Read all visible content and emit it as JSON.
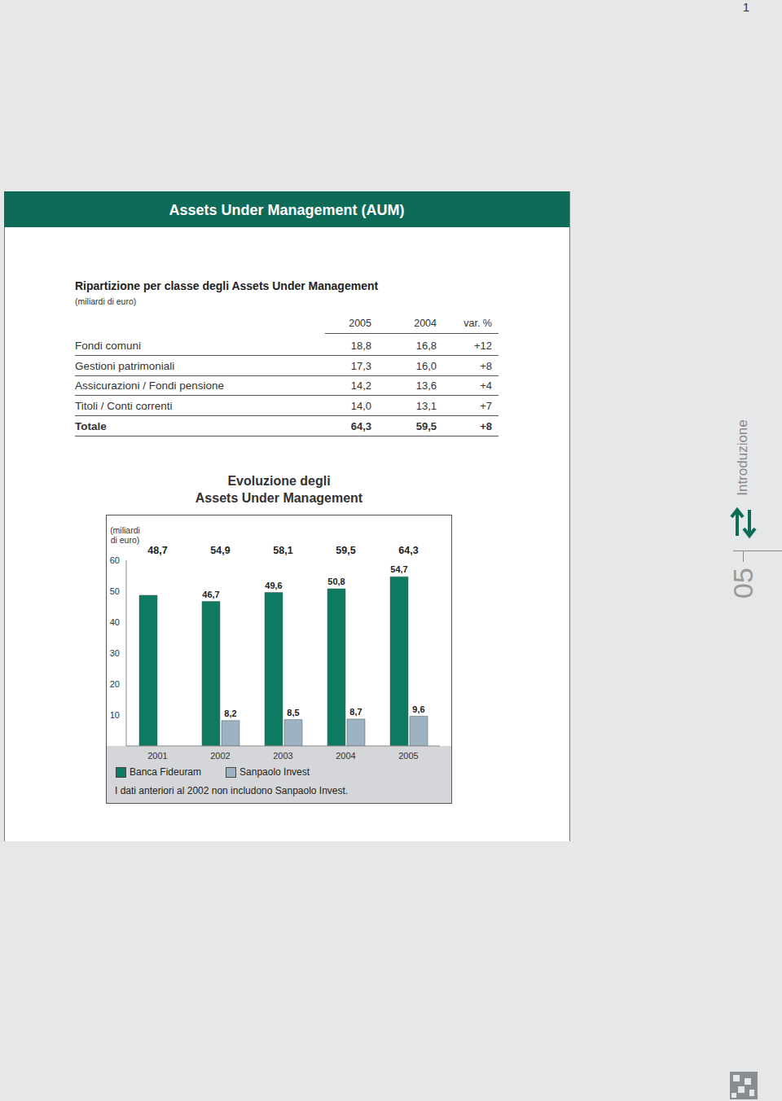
{
  "page_number": "1",
  "header": {
    "title": "Assets Under Management (AUM)"
  },
  "table": {
    "title": "Ripartizione per classe degli Assets Under Management",
    "subtitle": "(miliardi di euro)",
    "columns": [
      "2005",
      "2004",
      "var. %"
    ],
    "rows": [
      [
        "Fondi comuni",
        "18,8",
        "16,8",
        "+12"
      ],
      [
        "Gestioni patrimoniali",
        "17,3",
        "16,0",
        "+8"
      ],
      [
        "Assicurazioni / Fondi pensione",
        "14,2",
        "13,6",
        "+4"
      ],
      [
        "Titoli / Conti correnti",
        "14,0",
        "13,1",
        "+7"
      ]
    ],
    "total": [
      "Totale",
      "64,3",
      "59,5",
      "+8"
    ]
  },
  "sidebar": {
    "section": "Introduzione",
    "number": "05"
  },
  "chart_data": {
    "type": "bar",
    "title": [
      "Evoluzione degli",
      "Assets Under Management"
    ],
    "y_label": "(miliardi di euro)",
    "categories": [
      "2001",
      "2002",
      "2003",
      "2004",
      "2005"
    ],
    "series": [
      {
        "name": "Banca Fideuram",
        "color": "#0f7a62",
        "values": [
          48.7,
          46.7,
          49.6,
          50.8,
          54.7
        ],
        "value_labels": [
          null,
          "46,7",
          "49,6",
          "50,8",
          "54,7"
        ]
      },
      {
        "name": "Sanpaolo Invest",
        "color": "#9db3c3",
        "values": [
          null,
          8.2,
          8.5,
          8.7,
          9.6
        ],
        "value_labels": [
          null,
          "8,2",
          "8,5",
          "8,7",
          "9,6"
        ]
      }
    ],
    "totals": {
      "values": [
        48.7,
        54.9,
        58.1,
        59.5,
        64.3
      ],
      "labels": [
        "48,7",
        "54,9",
        "58,1",
        "59,5",
        "64,3"
      ]
    },
    "ylim": [
      0,
      60
    ],
    "yticks": [
      10,
      20,
      30,
      40,
      50,
      60
    ],
    "grid": false,
    "data_labels": true,
    "legend": "bottom",
    "note": "I dati anteriori al 2002 non includono Sanpaolo Invest."
  }
}
